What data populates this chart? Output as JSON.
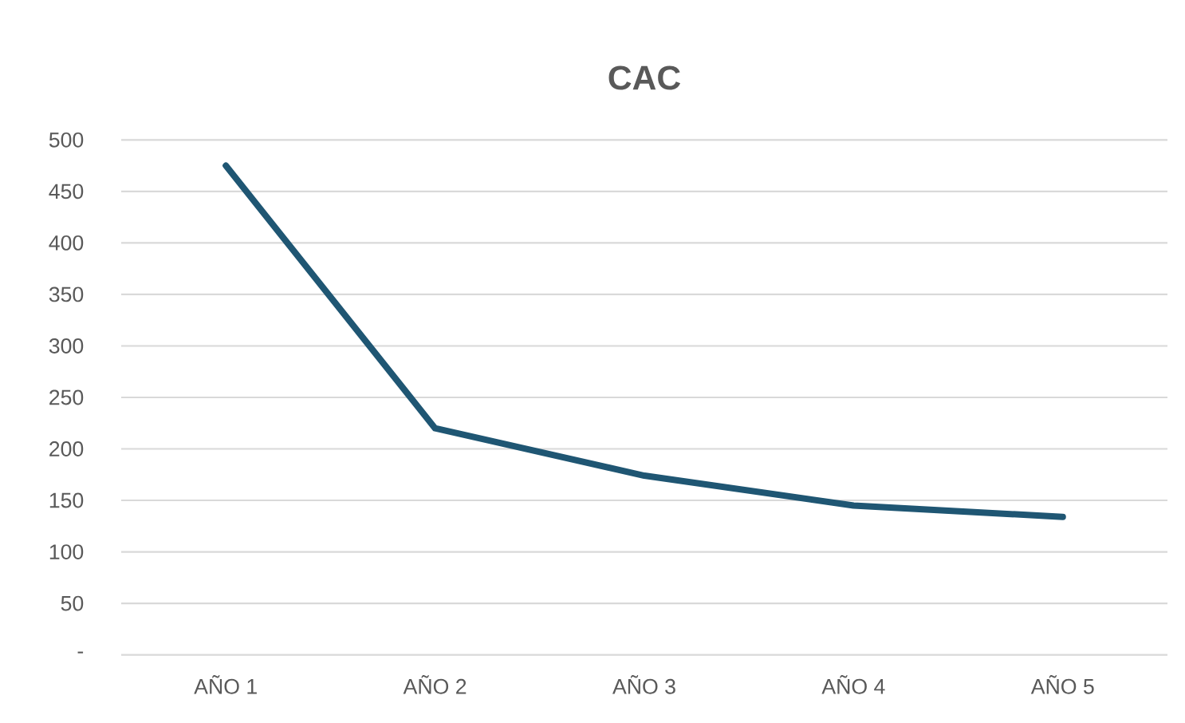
{
  "chart_data": {
    "type": "line",
    "title": "CAC",
    "categories": [
      "AÑO 1",
      "AÑO 2",
      "AÑO 3",
      "AÑO 4",
      "AÑO 5"
    ],
    "series": [
      {
        "color": "#1f5673",
        "values": [
          475,
          220,
          174,
          145,
          134
        ]
      }
    ],
    "ylim": [
      0,
      500
    ],
    "yticks": [
      {
        "value": 0,
        "label": "-"
      },
      50,
      100,
      150,
      200,
      250,
      300,
      350,
      400,
      450,
      500
    ],
    "grid": "y",
    "marker": "none",
    "line_style": "solid"
  }
}
